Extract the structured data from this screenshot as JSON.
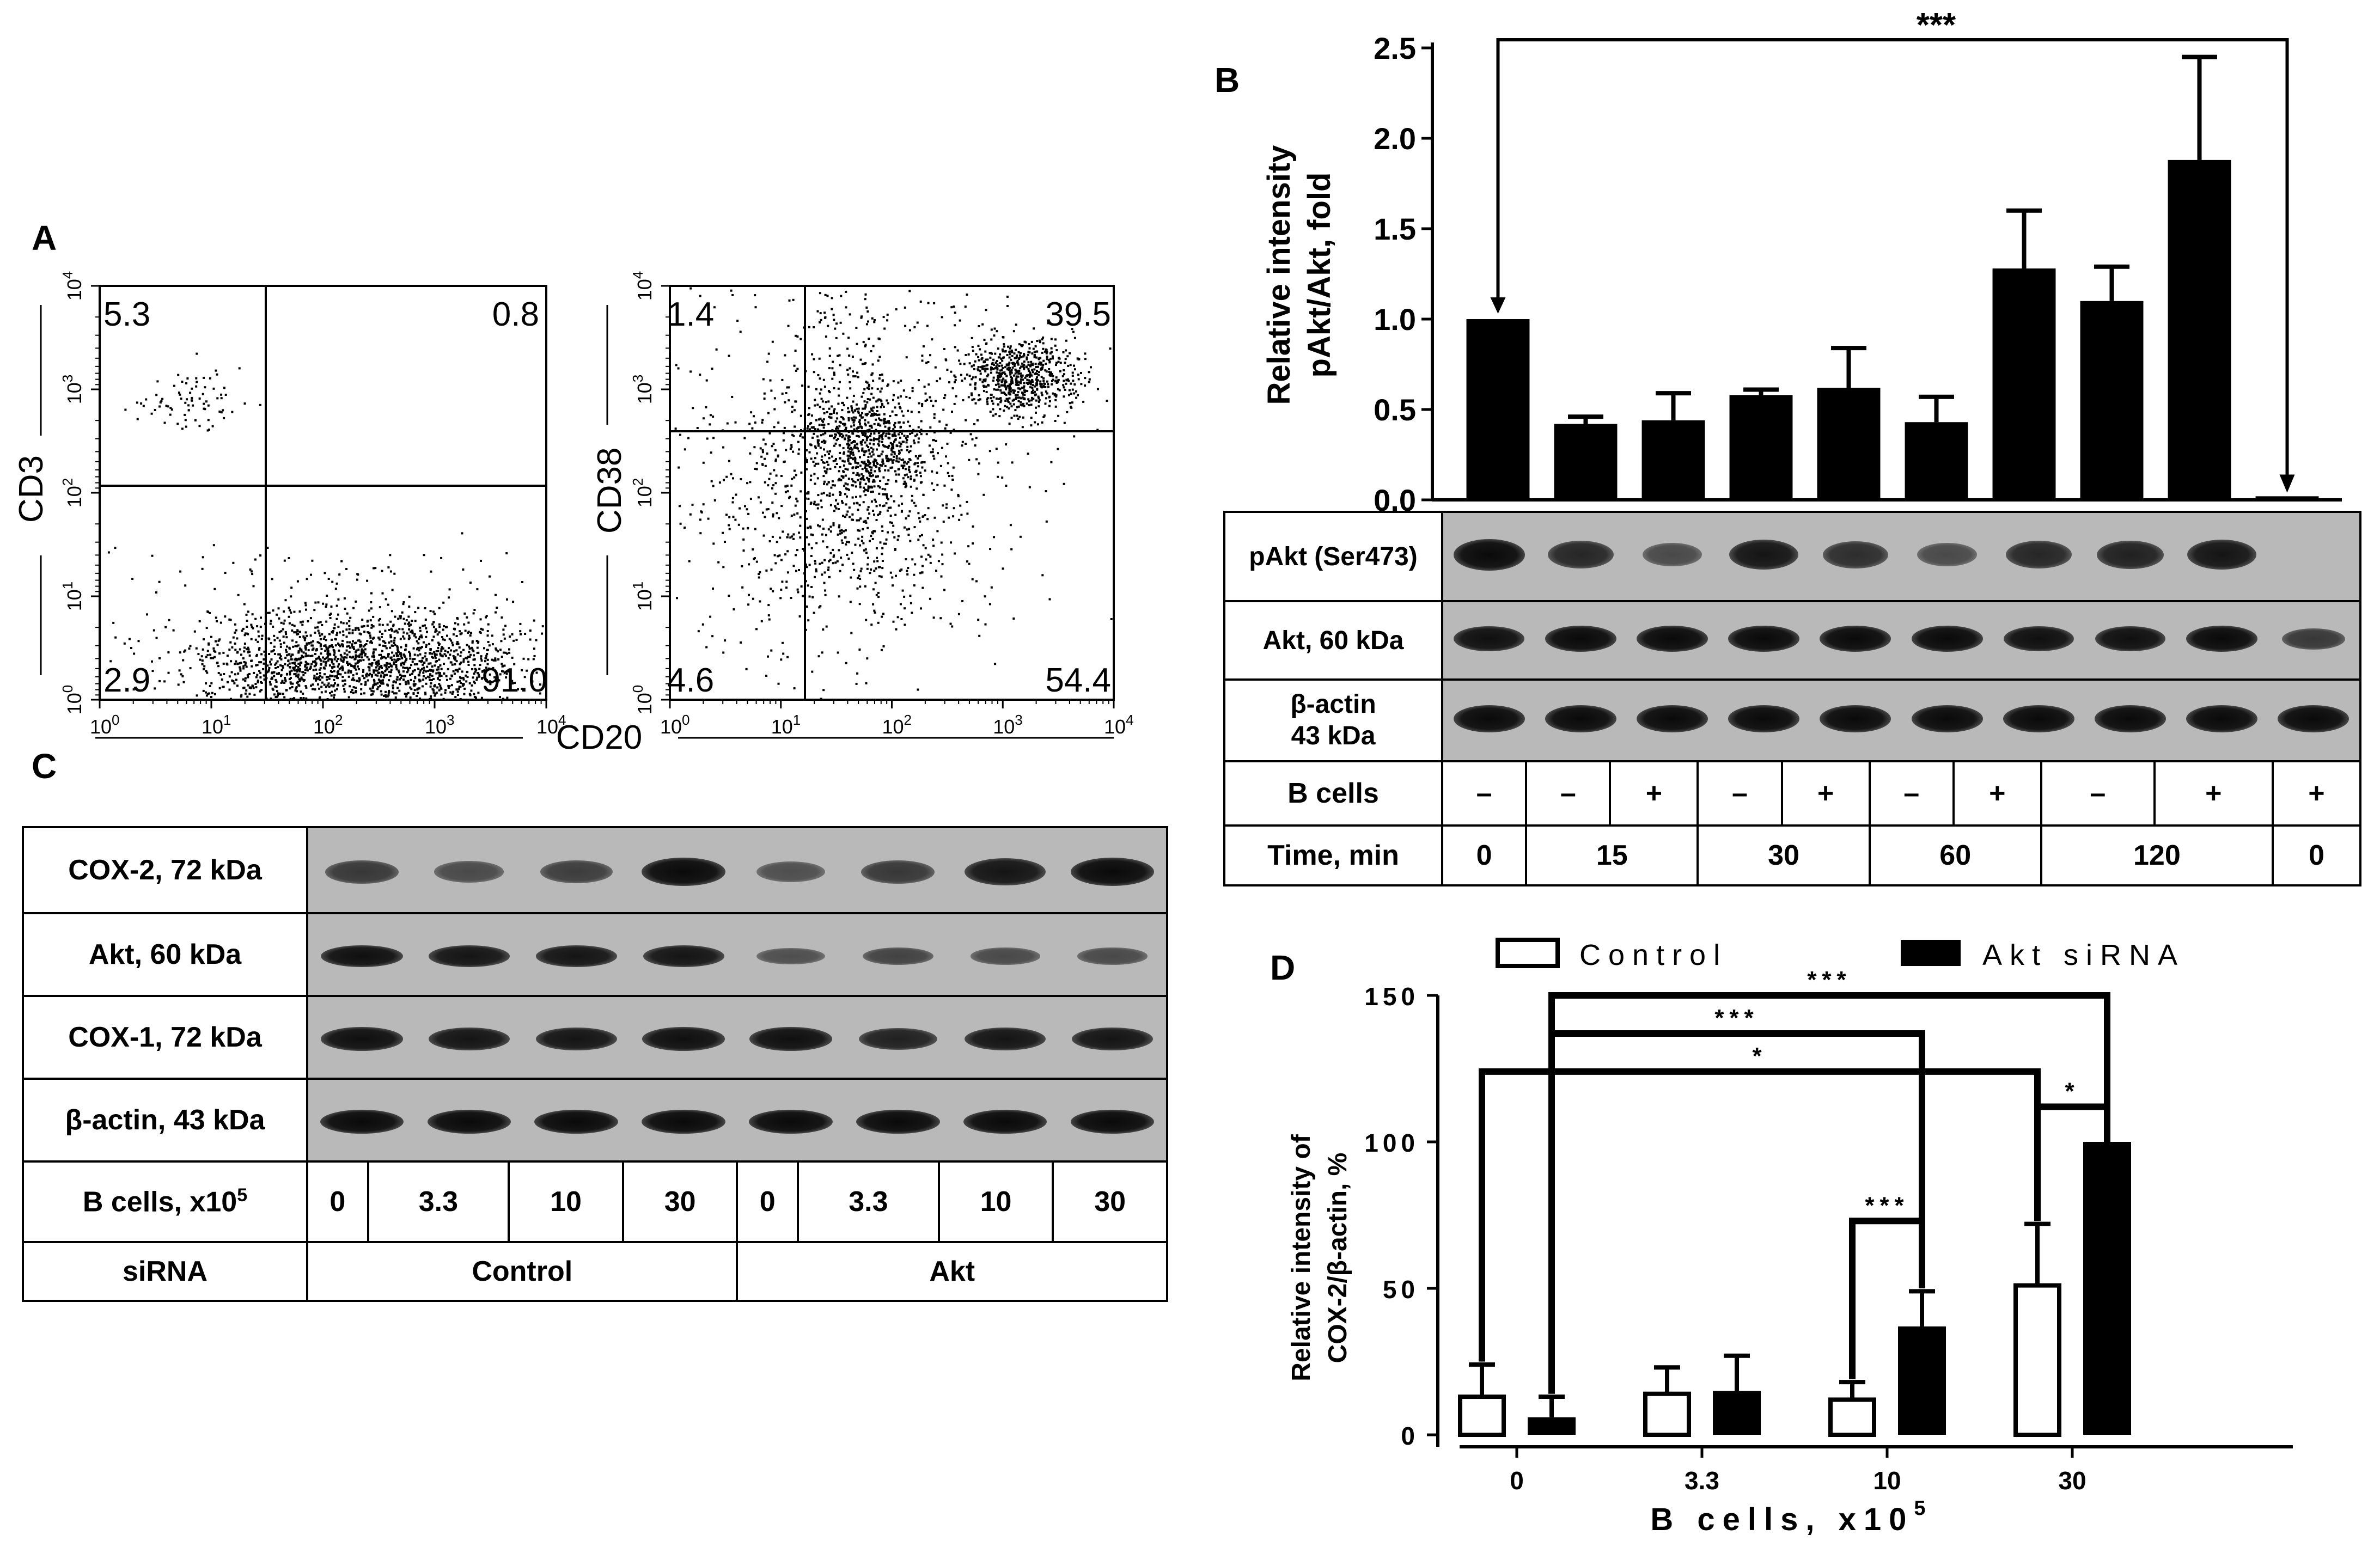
{
  "panelA": {
    "letter": "A",
    "plot1": {
      "y_axis_label": "CD3",
      "quadrants": {
        "upper_left": "5.3",
        "upper_right": "0.8",
        "lower_left": "2.9",
        "lower_right": "91.0"
      },
      "y_ticks": [
        "10",
        "10",
        "10",
        "10",
        "10"
      ],
      "y_tick_exps": [
        "4",
        "3",
        "2",
        "1",
        "0"
      ],
      "x_ticks": [
        "10",
        "10",
        "10",
        "10",
        "10"
      ],
      "x_tick_exps": [
        "0",
        "1",
        "2",
        "3",
        "4"
      ]
    },
    "plot2": {
      "y_axis_label": "CD38",
      "quadrants": {
        "upper_left": "1.4",
        "upper_right": "39.5",
        "lower_left": "4.6",
        "lower_right": "54.4"
      },
      "y_ticks": [
        "10",
        "10",
        "10",
        "10",
        "10"
      ],
      "y_tick_exps": [
        "4",
        "3",
        "2",
        "1",
        "0"
      ],
      "x_ticks": [
        "10",
        "10",
        "10",
        "10",
        "10"
      ],
      "x_tick_exps": [
        "0",
        "1",
        "2",
        "3",
        "4"
      ]
    },
    "shared_x_label": "CD20"
  },
  "panelB": {
    "letter": "B",
    "chart_data": {
      "type": "bar",
      "ylabel_line1": "Relative intensity",
      "ylabel_line2": "pAkt/Akt, fold",
      "ylim": [
        0,
        2.5
      ],
      "y_ticks": [
        "0.0",
        "0.5",
        "1.0",
        "1.5",
        "2.0",
        "2.5"
      ],
      "values": [
        1.0,
        0.42,
        0.44,
        0.58,
        0.62,
        0.43,
        1.28,
        1.1,
        1.88,
        0.02
      ],
      "errors": [
        0.0,
        0.04,
        0.15,
        0.03,
        0.22,
        0.14,
        0.32,
        0.19,
        0.57,
        0.0
      ],
      "significance": "***"
    },
    "blot_rows": [
      "pAkt (Ser473)",
      "Akt, 60 kDa",
      "β-actin\n43 kDa"
    ],
    "bcells_label": "B cells",
    "bcells_values": [
      "–",
      "–",
      "+",
      "–",
      "+",
      "–",
      "+",
      "–",
      "+",
      "+"
    ],
    "time_label": "Time, min",
    "time_values": [
      "0",
      "15",
      "30",
      "60",
      "120",
      "0"
    ]
  },
  "panelC": {
    "letter": "C",
    "blot_rows": [
      "COX-2, 72 kDa",
      "Akt, 60 kDa",
      "COX-1, 72 kDa",
      "β-actin, 43 kDa"
    ],
    "bcells_label": "B cells, x10",
    "bcells_exp": "5",
    "bcells_values": [
      "0",
      "3.3",
      "10",
      "30",
      "0",
      "3.3",
      "10",
      "30"
    ],
    "sirna_label": "siRNA",
    "sirna_values": [
      "Control",
      "Akt"
    ]
  },
  "panelD": {
    "letter": "D",
    "legend": [
      "Control",
      "Akt siRNA"
    ],
    "chart_data": {
      "type": "bar",
      "categories": [
        "0",
        "3.3",
        "10",
        "30"
      ],
      "series": [
        {
          "name": "Control",
          "values": [
            13,
            14,
            12,
            51
          ],
          "errors": [
            11,
            9,
            6,
            21
          ]
        },
        {
          "name": "Akt siRNA",
          "values": [
            6,
            15,
            37,
            100
          ],
          "errors": [
            7,
            12,
            12,
            0
          ]
        }
      ],
      "ylabel_line1": "Relative intensity of",
      "ylabel_line2": "COX-2/β-actin, %",
      "xlabel": "B cells, x10",
      "xlabel_exp": "5",
      "ylim": [
        0,
        150
      ],
      "y_ticks": [
        "0",
        "50",
        "100",
        "150"
      ],
      "significance": [
        "***",
        "***",
        "*",
        "*",
        "***"
      ]
    }
  }
}
